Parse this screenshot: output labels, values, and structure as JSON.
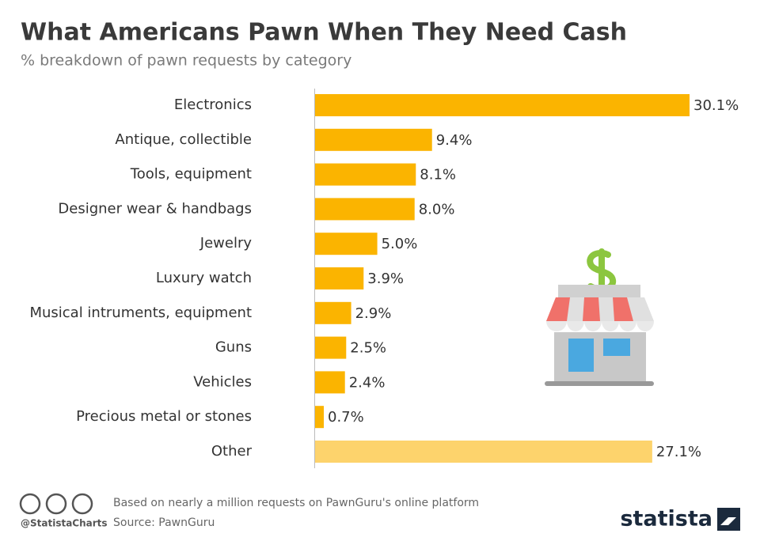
{
  "chart_data": {
    "type": "bar",
    "orientation": "horizontal",
    "title": "What Americans Pawn When They Need Cash",
    "subtitle": "% breakdown of pawn requests by category",
    "categories": [
      "Electronics",
      "Antique, collectible",
      "Tools, equipment",
      "Designer wear & handbags",
      "Jewelry",
      "Luxury watch",
      "Musical intruments, equipment",
      "Guns",
      "Vehicles",
      "Precious metal or stones",
      "Other"
    ],
    "values": [
      30.1,
      9.4,
      8.1,
      8.0,
      5.0,
      3.9,
      2.9,
      2.5,
      2.4,
      0.7,
      27.1
    ],
    "value_labels": [
      "30.1%",
      "9.4%",
      "8.1%",
      "8.0%",
      "5.0%",
      "3.9%",
      "2.9%",
      "2.5%",
      "2.4%",
      "0.7%",
      "27.1%"
    ],
    "colors": [
      "#fbb400",
      "#fbb400",
      "#fbb400",
      "#fbb400",
      "#fbb400",
      "#fbb400",
      "#fbb400",
      "#fbb400",
      "#fbb400",
      "#fbb400",
      "#fdd36c"
    ]
  },
  "footer": {
    "note": "Based on nearly a million requests on PawnGuru's online platform",
    "source": "Source: PawnGuru",
    "handle": "@StatistaCharts",
    "brand": "statista"
  }
}
